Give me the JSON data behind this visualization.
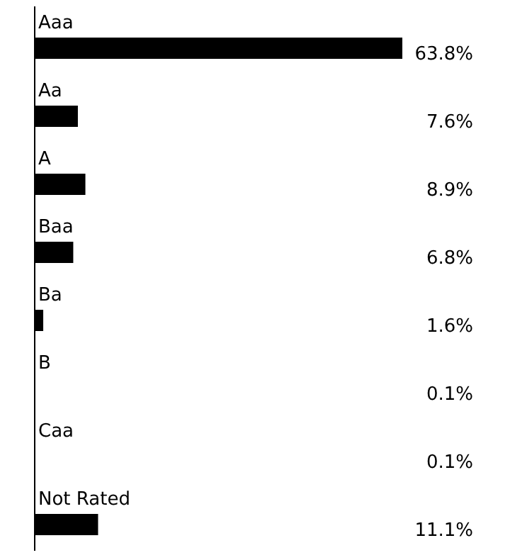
{
  "chart_data": {
    "type": "bar",
    "orientation": "horizontal",
    "categories": [
      "Aaa",
      "Aa",
      "A",
      "Baa",
      "Ba",
      "B",
      "Caa",
      "Not Rated"
    ],
    "values": [
      63.8,
      7.6,
      8.9,
      6.8,
      1.6,
      0.1,
      0.1,
      11.1
    ],
    "value_labels": [
      "63.8%",
      "7.6%",
      "8.9%",
      "6.8%",
      "1.6%",
      "0.1%",
      "0.1%",
      "11.1%"
    ],
    "color": "#000000"
  }
}
